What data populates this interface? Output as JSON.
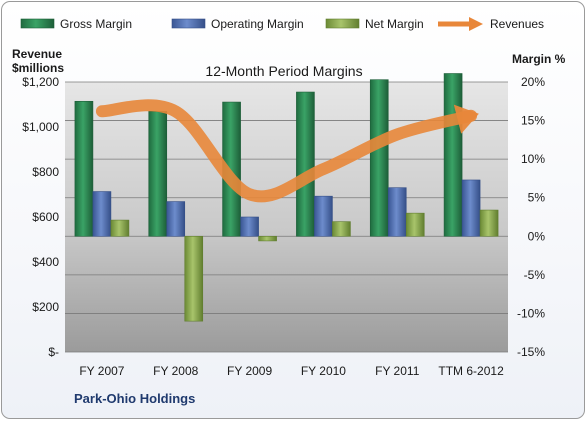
{
  "chart_data": {
    "type": "bar",
    "title": "12-Month Period Margins",
    "company": "Park-Ohio Holdings",
    "categories": [
      "FY 2007",
      "FY 2008",
      "FY 2009",
      "FY 2010",
      "FY 2011",
      "TTM 6-2012"
    ],
    "y_left": {
      "label_line1": "Revenue",
      "label_line2": "$millions",
      "ticks": [
        "$-",
        "$200",
        "$400",
        "$600",
        "$800",
        "$1,000",
        "$1,200"
      ],
      "ylim": [
        0,
        1200
      ]
    },
    "y_right": {
      "label": "Margin %",
      "ticks": [
        "-15%",
        "-10%",
        "-5%",
        "0%",
        "5%",
        "10%",
        "15%",
        "20%"
      ],
      "ylim": [
        -15,
        20
      ]
    },
    "series": [
      {
        "name": "Gross Margin",
        "kind": "bar",
        "axis": "right",
        "color": "#2e8b57",
        "values": [
          17.5,
          16.2,
          17.4,
          18.7,
          20.3,
          21.1
        ]
      },
      {
        "name": "Operating Margin",
        "kind": "bar",
        "axis": "right",
        "color": "#4f6fb5",
        "values": [
          5.8,
          4.5,
          2.5,
          5.2,
          6.3,
          7.3
        ]
      },
      {
        "name": "Net Margin",
        "kind": "bar",
        "axis": "right",
        "color": "#8aab4e",
        "values": [
          2.1,
          -11.0,
          -0.6,
          1.9,
          3.0,
          3.4
        ]
      },
      {
        "name": "Revenues",
        "kind": "line",
        "axis": "left",
        "color": "#e8873a",
        "values": [
          1070,
          1069,
          701,
          813,
          967,
          1050
        ]
      }
    ],
    "legend_position": "top",
    "grid": true
  }
}
